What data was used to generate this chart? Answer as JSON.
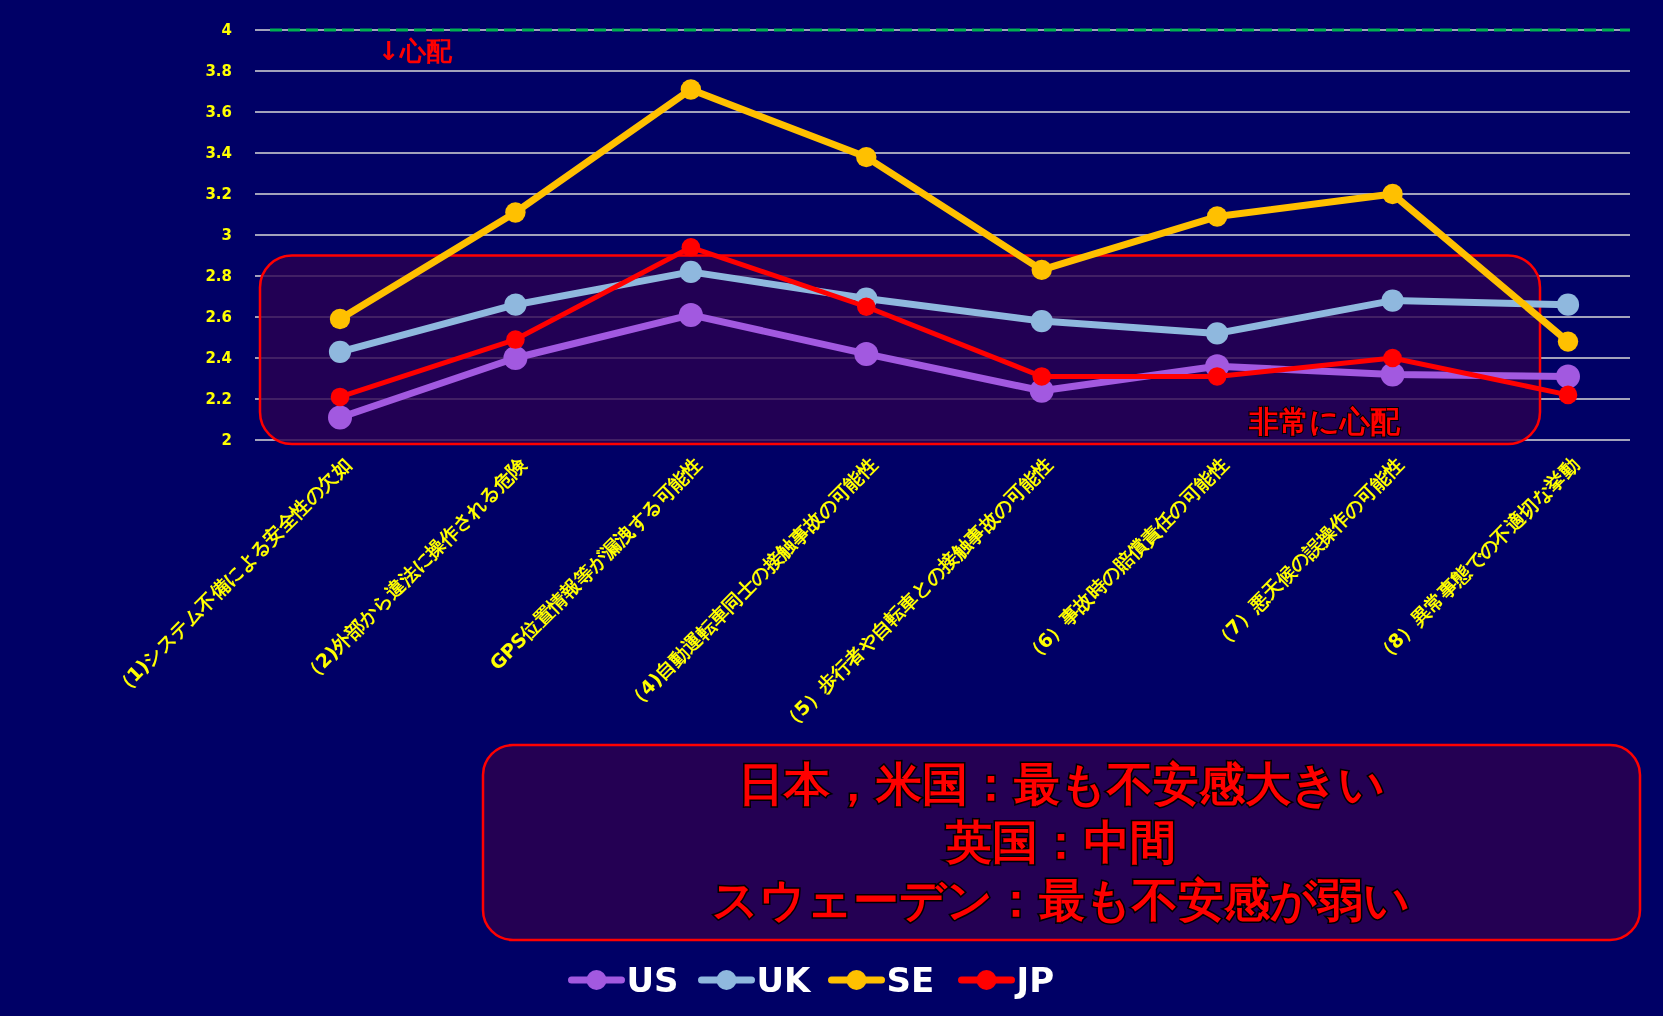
{
  "chart_data": {
    "type": "line",
    "categories": [
      "（1)システム不備による安全性の欠如",
      "（2)外部から違法に操作される危険",
      "GPS位置情報等が漏洩する可能性",
      "（4)自動運転車同士の接触事故の可能性",
      "（5）歩行者や自転車との接触事故の可能性",
      "（6）事故時の賠償責任の可能性",
      "（7）悪天候の誤操作の可能性",
      "（8）異常事態での不適切な挙動"
    ],
    "series": [
      {
        "name": "US",
        "color": "#a259e0",
        "values": [
          2.11,
          2.4,
          2.61,
          2.42,
          2.24,
          2.36,
          2.32,
          2.31
        ]
      },
      {
        "name": "UK",
        "color": "#8fb8de",
        "values": [
          2.43,
          2.66,
          2.82,
          2.69,
          2.58,
          2.52,
          2.68,
          2.66
        ]
      },
      {
        "name": "SE",
        "color": "#ffc000",
        "values": [
          2.59,
          3.11,
          3.71,
          3.38,
          2.83,
          3.09,
          3.2,
          2.48
        ]
      },
      {
        "name": "JP",
        "color": "#ff0000",
        "values": [
          2.21,
          2.49,
          2.94,
          2.65,
          2.31,
          2.31,
          2.4,
          2.22
        ]
      }
    ],
    "ylim": [
      2,
      4
    ],
    "yticks": [
      2,
      2.2,
      2.4,
      2.6,
      2.8,
      3,
      3.2,
      3.4,
      3.6,
      3.8,
      4
    ],
    "grid": "y",
    "legend": "bottom",
    "marker": "circle",
    "line_style": "solid",
    "ref_lines": [
      {
        "axis": "y",
        "value": 4,
        "color": "#00b050",
        "line_style": "dashed"
      }
    ],
    "bands": [
      {
        "axis": "y",
        "from": 2,
        "to": 2.9,
        "label": "非常に心配",
        "color": "#2a0050"
      }
    ],
    "annotations": [
      "↓心配",
      "日本，米国：最も不安感大きい",
      "英国：中間",
      "スウェーデン：最も不安感が弱い"
    ]
  }
}
